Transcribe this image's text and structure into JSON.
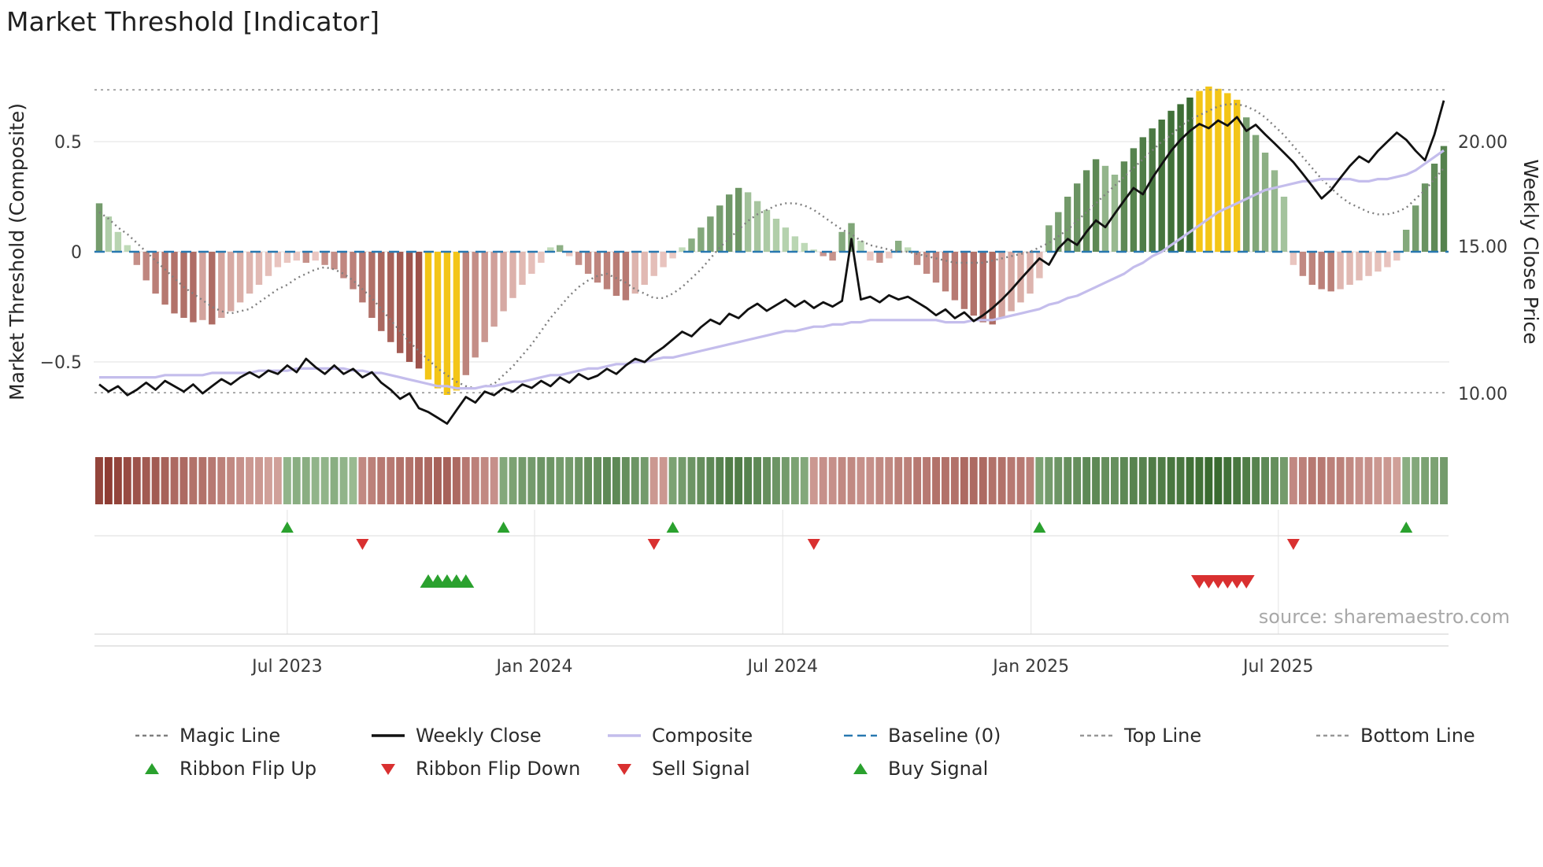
{
  "title": "Market Threshold [Indicator]",
  "source": "source: sharemaestro.com",
  "axes": {
    "left_label": "Market Threshold (Composite)",
    "right_label": "Weekly Close Price",
    "left_tick_labels": [
      "0.5",
      "0",
      "−0.5"
    ],
    "left_tick_values": [
      0.5,
      0,
      -0.5
    ],
    "right_tick_labels": [
      "20.00",
      "15.00",
      "10.00"
    ],
    "right_tick_values": [
      20,
      15,
      10
    ],
    "x_tick_labels": [
      "Jul 2023",
      "Jan 2024",
      "Jul 2024",
      "Jan 2025",
      "Jul 2025"
    ],
    "x_tick_week_indices": [
      20,
      46.3,
      72.7,
      99.1,
      125.4
    ]
  },
  "colors": {
    "bar_positive_light": "#cfe7c8",
    "bar_positive_dark": "#3a6b31",
    "bar_negative_light": "#f6d9d4",
    "bar_negative_dark": "#8e3c33",
    "bar_highlight": "#f3c517",
    "weekly_close": "#111111",
    "composite": "#c4bdec",
    "magic_line": "#7f7f7f",
    "baseline": "#2878b0",
    "top_bottom_line": "#979797",
    "signal_green": "#2aa12e",
    "signal_red": "#d93030",
    "grid": "#e7e7e7"
  },
  "chart_data": {
    "type": "combo (bar histogram + lines + ribbon + signal markers)",
    "x_axis": {
      "unit": "week",
      "n_points": 144
    },
    "left_axis": {
      "ticks": [
        0.5,
        0,
        -0.5
      ],
      "range": [
        -0.82,
        0.88
      ]
    },
    "right_axis": {
      "scale": "log",
      "ticks": [
        20,
        15,
        10
      ],
      "range": [
        8.9,
        23.5
      ]
    },
    "reference_lines": {
      "baseline": 0,
      "top_line": 0.735,
      "bottom_line": -0.64
    },
    "highlight_bar_indices": [
      35,
      36,
      37,
      38,
      117,
      118,
      119,
      120,
      121
    ],
    "signals": {
      "ribbon_flip_up_indices": [
        20,
        43,
        61,
        100,
        139
      ],
      "ribbon_flip_down_indices": [
        28,
        59,
        76,
        127
      ],
      "buy_signal_indices": [
        35,
        36,
        37,
        38,
        39
      ],
      "sell_signal_indices": [
        117,
        118,
        119,
        120,
        121,
        122
      ]
    },
    "series": {
      "threshold_bars": [
        0.22,
        0.16,
        0.09,
        0.03,
        -0.06,
        -0.13,
        -0.19,
        -0.24,
        -0.28,
        -0.3,
        -0.32,
        -0.31,
        -0.33,
        -0.3,
        -0.27,
        -0.23,
        -0.19,
        -0.15,
        -0.11,
        -0.07,
        -0.05,
        -0.04,
        -0.05,
        -0.04,
        -0.06,
        -0.08,
        -0.12,
        -0.17,
        -0.23,
        -0.3,
        -0.36,
        -0.41,
        -0.46,
        -0.5,
        -0.53,
        -0.58,
        -0.62,
        -0.65,
        -0.63,
        -0.56,
        -0.48,
        -0.41,
        -0.34,
        -0.27,
        -0.21,
        -0.15,
        -0.1,
        -0.05,
        0.02,
        0.03,
        -0.02,
        -0.06,
        -0.1,
        -0.14,
        -0.17,
        -0.2,
        -0.22,
        -0.19,
        -0.15,
        -0.11,
        -0.07,
        -0.03,
        0.02,
        0.06,
        0.11,
        0.16,
        0.21,
        0.26,
        0.29,
        0.27,
        0.23,
        0.19,
        0.15,
        0.11,
        0.07,
        0.04,
        0.01,
        -0.02,
        -0.04,
        0.09,
        0.13,
        0.05,
        -0.04,
        -0.05,
        -0.03,
        0.05,
        0.02,
        -0.06,
        -0.1,
        -0.14,
        -0.18,
        -0.22,
        -0.26,
        -0.29,
        -0.32,
        -0.33,
        -0.3,
        -0.27,
        -0.23,
        -0.19,
        -0.12,
        0.12,
        0.18,
        0.25,
        0.31,
        0.37,
        0.42,
        0.39,
        0.35,
        0.41,
        0.47,
        0.52,
        0.56,
        0.6,
        0.64,
        0.67,
        0.7,
        0.73,
        0.75,
        0.74,
        0.72,
        0.69,
        0.61,
        0.53,
        0.45,
        0.37,
        0.25,
        -0.06,
        -0.11,
        -0.15,
        -0.17,
        -0.18,
        -0.17,
        -0.15,
        -0.13,
        -0.11,
        -0.09,
        -0.07,
        -0.04,
        0.1,
        0.21,
        0.31,
        0.4,
        0.48
      ],
      "weekly_close": [
        10.25,
        10.05,
        10.2,
        9.95,
        10.1,
        10.3,
        10.1,
        10.35,
        10.2,
        10.05,
        10.25,
        10.0,
        10.2,
        10.4,
        10.25,
        10.45,
        10.6,
        10.45,
        10.65,
        10.55,
        10.8,
        10.6,
        11.0,
        10.75,
        10.55,
        10.8,
        10.55,
        10.7,
        10.45,
        10.6,
        10.3,
        10.1,
        9.85,
        10.0,
        9.6,
        9.5,
        9.35,
        9.2,
        9.55,
        9.9,
        9.75,
        10.05,
        9.95,
        10.15,
        10.05,
        10.25,
        10.15,
        10.35,
        10.2,
        10.45,
        10.3,
        10.55,
        10.4,
        10.5,
        10.7,
        10.55,
        10.8,
        11.0,
        10.9,
        11.15,
        11.35,
        11.6,
        11.85,
        11.7,
        12.0,
        12.25,
        12.1,
        12.45,
        12.3,
        12.6,
        12.8,
        12.55,
        12.75,
        12.95,
        12.7,
        12.9,
        12.65,
        12.85,
        12.7,
        12.9,
        15.3,
        12.95,
        13.05,
        12.85,
        13.1,
        12.95,
        13.05,
        12.85,
        12.65,
        12.4,
        12.6,
        12.3,
        12.5,
        12.2,
        12.4,
        12.65,
        12.95,
        13.3,
        13.7,
        14.1,
        14.5,
        14.25,
        14.9,
        15.3,
        15.05,
        15.6,
        16.1,
        15.8,
        16.4,
        17.0,
        17.6,
        17.3,
        18.1,
        18.8,
        19.5,
        20.1,
        20.6,
        21.0,
        20.75,
        21.2,
        20.9,
        21.4,
        20.6,
        20.95,
        20.4,
        19.9,
        19.4,
        18.9,
        18.3,
        17.7,
        17.1,
        17.5,
        18.1,
        18.7,
        19.2,
        18.9,
        19.5,
        20.0,
        20.5,
        20.1,
        19.5,
        19.0,
        20.4,
        22.4
      ],
      "composite": [
        -0.57,
        -0.57,
        -0.57,
        -0.57,
        -0.57,
        -0.57,
        -0.57,
        -0.56,
        -0.56,
        -0.56,
        -0.56,
        -0.56,
        -0.55,
        -0.55,
        -0.55,
        -0.55,
        -0.55,
        -0.54,
        -0.54,
        -0.54,
        -0.54,
        -0.53,
        -0.53,
        -0.53,
        -0.53,
        -0.53,
        -0.53,
        -0.54,
        -0.54,
        -0.55,
        -0.55,
        -0.56,
        -0.57,
        -0.58,
        -0.59,
        -0.6,
        -0.61,
        -0.61,
        -0.62,
        -0.62,
        -0.62,
        -0.61,
        -0.61,
        -0.6,
        -0.59,
        -0.59,
        -0.58,
        -0.57,
        -0.56,
        -0.56,
        -0.55,
        -0.54,
        -0.53,
        -0.53,
        -0.52,
        -0.51,
        -0.51,
        -0.5,
        -0.5,
        -0.49,
        -0.48,
        -0.48,
        -0.47,
        -0.46,
        -0.45,
        -0.44,
        -0.43,
        -0.42,
        -0.41,
        -0.4,
        -0.39,
        -0.38,
        -0.37,
        -0.36,
        -0.36,
        -0.35,
        -0.34,
        -0.34,
        -0.33,
        -0.33,
        -0.32,
        -0.32,
        -0.31,
        -0.31,
        -0.31,
        -0.31,
        -0.31,
        -0.31,
        -0.31,
        -0.31,
        -0.32,
        -0.32,
        -0.32,
        -0.31,
        -0.31,
        -0.31,
        -0.3,
        -0.29,
        -0.28,
        -0.27,
        -0.26,
        -0.24,
        -0.23,
        -0.21,
        -0.2,
        -0.18,
        -0.16,
        -0.14,
        -0.12,
        -0.1,
        -0.07,
        -0.05,
        -0.02,
        0.0,
        0.03,
        0.06,
        0.09,
        0.12,
        0.15,
        0.18,
        0.2,
        0.22,
        0.24,
        0.26,
        0.28,
        0.29,
        0.3,
        0.31,
        0.32,
        0.32,
        0.33,
        0.33,
        0.33,
        0.33,
        0.32,
        0.32,
        0.33,
        0.33,
        0.34,
        0.35,
        0.37,
        0.4,
        0.43,
        0.46
      ],
      "magic_line": [
        0.18,
        0.15,
        0.11,
        0.08,
        0.04,
        0.0,
        -0.04,
        -0.08,
        -0.12,
        -0.16,
        -0.19,
        -0.22,
        -0.25,
        -0.27,
        -0.28,
        -0.27,
        -0.26,
        -0.23,
        -0.2,
        -0.17,
        -0.15,
        -0.12,
        -0.1,
        -0.08,
        -0.07,
        -0.08,
        -0.1,
        -0.13,
        -0.17,
        -0.21,
        -0.26,
        -0.31,
        -0.36,
        -0.41,
        -0.45,
        -0.49,
        -0.53,
        -0.56,
        -0.59,
        -0.61,
        -0.62,
        -0.61,
        -0.6,
        -0.56,
        -0.52,
        -0.47,
        -0.42,
        -0.36,
        -0.3,
        -0.25,
        -0.2,
        -0.16,
        -0.13,
        -0.11,
        -0.1,
        -0.12,
        -0.14,
        -0.17,
        -0.19,
        -0.21,
        -0.21,
        -0.19,
        -0.16,
        -0.12,
        -0.08,
        -0.03,
        0.02,
        0.06,
        0.1,
        0.14,
        0.17,
        0.19,
        0.21,
        0.22,
        0.22,
        0.21,
        0.19,
        0.16,
        0.13,
        0.1,
        0.08,
        0.05,
        0.03,
        0.02,
        0.01,
        0.0,
        0.0,
        -0.01,
        -0.02,
        -0.03,
        -0.04,
        -0.05,
        -0.05,
        -0.05,
        -0.05,
        -0.04,
        -0.03,
        -0.02,
        -0.01,
        0.0,
        0.02,
        0.04,
        0.07,
        0.1,
        0.14,
        0.18,
        0.22,
        0.26,
        0.3,
        0.34,
        0.38,
        0.42,
        0.46,
        0.5,
        0.53,
        0.57,
        0.6,
        0.62,
        0.64,
        0.66,
        0.67,
        0.67,
        0.66,
        0.64,
        0.61,
        0.57,
        0.53,
        0.48,
        0.43,
        0.38,
        0.33,
        0.29,
        0.25,
        0.22,
        0.2,
        0.18,
        0.17,
        0.17,
        0.18,
        0.2,
        0.24,
        0.28,
        0.33,
        0.38
      ]
    },
    "ribbon": [
      -0.85,
      -0.9,
      -0.85,
      -0.8,
      -0.75,
      -0.7,
      -0.7,
      -0.65,
      -0.6,
      -0.6,
      -0.55,
      -0.55,
      -0.5,
      -0.45,
      -0.4,
      -0.35,
      -0.3,
      -0.3,
      -0.25,
      -0.25,
      0.3,
      0.35,
      0.35,
      0.3,
      0.3,
      0.35,
      0.3,
      0.25,
      -0.4,
      -0.45,
      -0.5,
      -0.5,
      -0.55,
      -0.55,
      -0.6,
      -0.6,
      -0.65,
      -0.65,
      -0.6,
      -0.5,
      -0.45,
      -0.4,
      -0.35,
      0.4,
      0.45,
      0.5,
      0.5,
      0.55,
      0.55,
      0.5,
      0.5,
      0.55,
      0.6,
      0.6,
      0.65,
      0.65,
      0.6,
      0.55,
      0.5,
      -0.3,
      -0.3,
      0.45,
      0.5,
      0.55,
      0.6,
      0.65,
      0.7,
      0.75,
      0.75,
      0.7,
      0.65,
      0.6,
      0.55,
      0.5,
      0.45,
      0.4,
      -0.3,
      -0.35,
      -0.35,
      -0.4,
      -0.4,
      -0.35,
      -0.35,
      -0.4,
      -0.4,
      -0.45,
      -0.45,
      -0.5,
      -0.5,
      -0.55,
      -0.55,
      -0.55,
      -0.6,
      -0.6,
      -0.6,
      -0.55,
      -0.55,
      -0.5,
      -0.5,
      -0.45,
      0.45,
      0.5,
      0.55,
      0.6,
      0.6,
      0.65,
      0.65,
      0.6,
      0.6,
      0.65,
      0.7,
      0.7,
      0.75,
      0.75,
      0.8,
      0.8,
      0.85,
      0.85,
      0.9,
      0.9,
      0.85,
      0.8,
      0.75,
      0.7,
      0.65,
      0.6,
      0.5,
      -0.4,
      -0.45,
      -0.5,
      -0.5,
      -0.45,
      -0.45,
      -0.4,
      -0.35,
      -0.35,
      -0.3,
      -0.3,
      -0.25,
      0.35,
      0.4,
      0.45,
      0.45,
      0.5
    ]
  },
  "legend": {
    "rows": [
      [
        {
          "label": "Magic Line",
          "swatch": "dotted-line",
          "color": "#7f7f7f"
        },
        {
          "label": "Weekly Close",
          "swatch": "solid-line",
          "color": "#111111"
        },
        {
          "label": "Composite",
          "swatch": "solid-line",
          "color": "#c4bdec"
        },
        {
          "label": "Baseline (0)",
          "swatch": "dashed-line",
          "color": "#2878b0"
        },
        {
          "label": "Top Line",
          "swatch": "dotted-line",
          "color": "#979797"
        },
        {
          "label": "Bottom Line",
          "swatch": "dotted-line",
          "color": "#979797"
        }
      ],
      [
        {
          "label": "Ribbon Flip Up",
          "swatch": "triangle-up",
          "color": "#2aa12e"
        },
        {
          "label": "Ribbon Flip Down",
          "swatch": "triangle-down",
          "color": "#d93030"
        },
        {
          "label": "Sell Signal",
          "swatch": "triangle-down",
          "color": "#d93030"
        },
        {
          "label": "Buy Signal",
          "swatch": "triangle-up",
          "color": "#2aa12e"
        }
      ]
    ]
  }
}
